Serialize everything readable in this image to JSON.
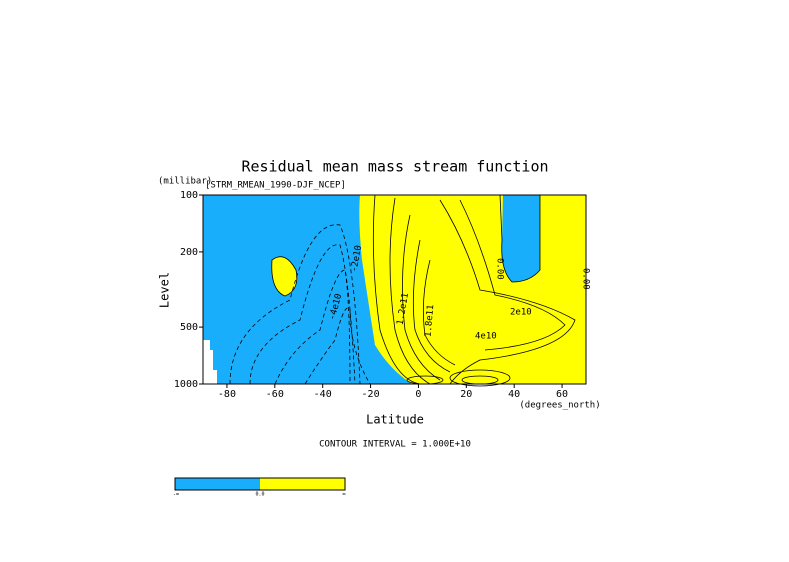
{
  "chart_data": {
    "type": "contour",
    "title": "Residual mean mass stream function",
    "subtitle": "[STRM_RMEAN_1990-DJF_NCEP]",
    "x_label": "Latitude",
    "x_units": "(degrees_north)",
    "y_label": "Level",
    "y_units": "(millibar)",
    "xlim": [
      -90,
      70
    ],
    "xticks": [
      -80,
      -60,
      -40,
      -20,
      0,
      20,
      40,
      60
    ],
    "ylim": [
      1000,
      100
    ],
    "yticks": [
      100,
      200,
      500,
      1000
    ],
    "log_y": true,
    "negative_color": "#18aefc",
    "positive_color": "#ffff00",
    "contour_interval": "CONTOUR INTERVAL = 1.000E+10",
    "contour_labels": [
      "-4e10",
      "-2e10",
      "1.2e11",
      "1.8e11",
      "4e10",
      "2e10",
      "0.00",
      "0.00"
    ],
    "colorbar_labels": [
      "-∞",
      "0.0",
      "∞"
    ]
  }
}
